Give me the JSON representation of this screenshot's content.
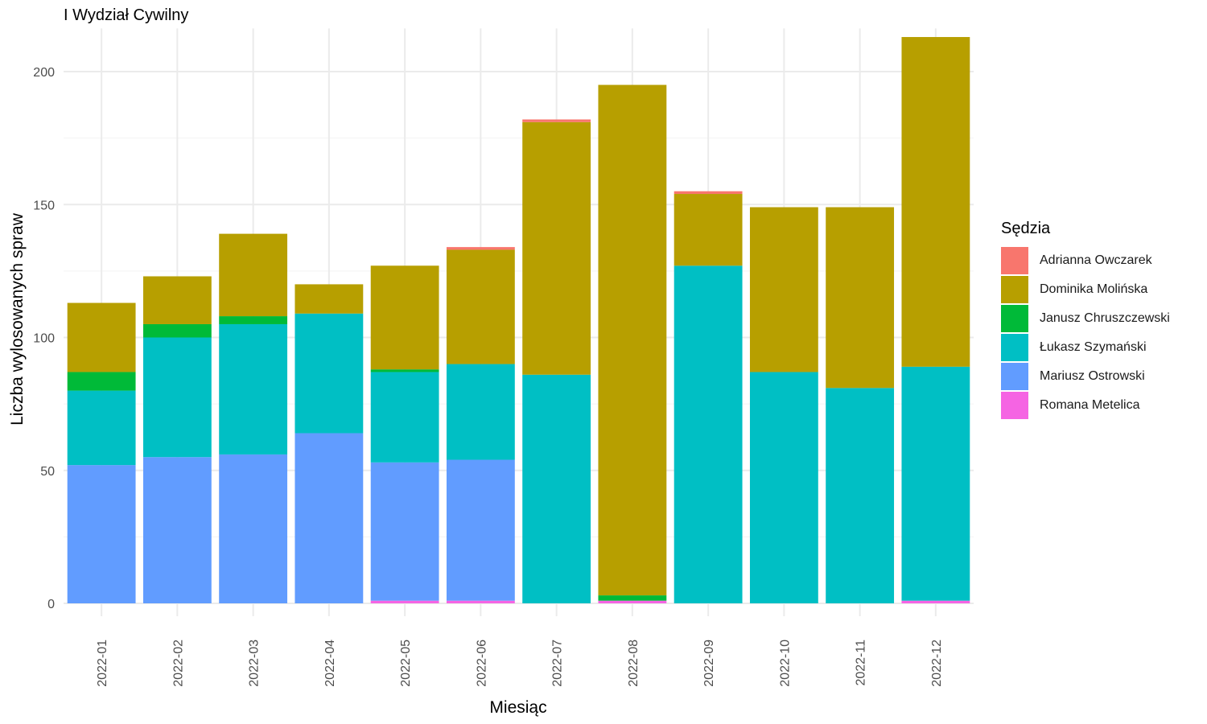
{
  "chart_data": {
    "type": "bar",
    "stacked": true,
    "title": "I Wydział Cywilny",
    "xlabel": "Miesiąc",
    "ylabel": "Liczba wylosowanych spraw",
    "ylim": [
      0,
      215
    ],
    "yticks": [
      0,
      50,
      100,
      150,
      200
    ],
    "grid": true,
    "legend_title": "Sędzia",
    "legend_position": "right",
    "categories": [
      "2022-01",
      "2022-02",
      "2022-03",
      "2022-04",
      "2022-05",
      "2022-06",
      "2022-07",
      "2022-08",
      "2022-09",
      "2022-10",
      "2022-11",
      "2022-12"
    ],
    "series": [
      {
        "name": "Adrianna Owczarek",
        "color": "#F8766D",
        "values": [
          0,
          0,
          0,
          0,
          0,
          1,
          1,
          0,
          1,
          0,
          0,
          0
        ]
      },
      {
        "name": "Dominika Molińska",
        "color": "#B79F00",
        "values": [
          26,
          18,
          31,
          11,
          39,
          43,
          95,
          192,
          27,
          62,
          68,
          124
        ]
      },
      {
        "name": "Janusz Chruszczewski",
        "color": "#00BA38",
        "values": [
          7,
          5,
          3,
          0,
          1,
          0,
          0,
          2,
          0,
          0,
          0,
          0
        ]
      },
      {
        "name": "Łukasz Szymański",
        "color": "#00BFC4",
        "values": [
          28,
          45,
          49,
          45,
          34,
          36,
          86,
          0,
          127,
          87,
          81,
          88
        ]
      },
      {
        "name": "Mariusz Ostrowski",
        "color": "#619CFF",
        "values": [
          52,
          55,
          56,
          64,
          52,
          53,
          0,
          0,
          0,
          0,
          0,
          0
        ]
      },
      {
        "name": "Romana Metelica",
        "color": "#F564E3",
        "values": [
          0,
          0,
          0,
          0,
          1,
          1,
          0,
          1,
          0,
          0,
          0,
          1
        ]
      }
    ]
  }
}
